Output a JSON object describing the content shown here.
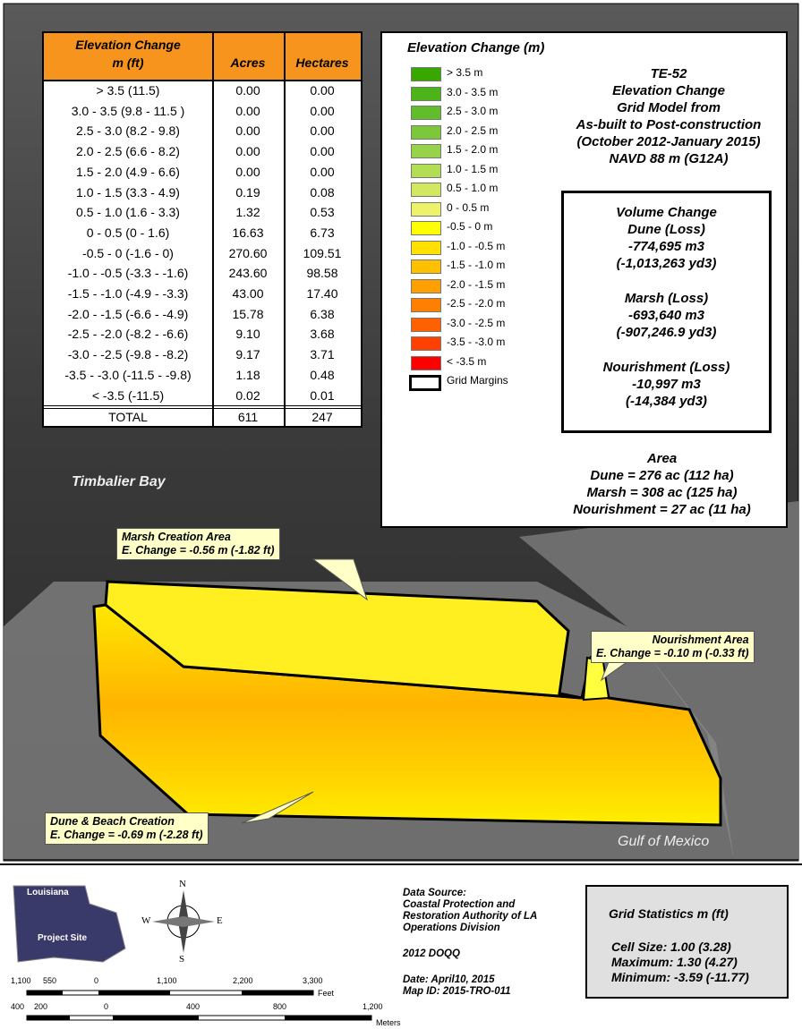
{
  "table": {
    "header": [
      "Elevation Change",
      "m (ft)",
      "Acres",
      "Hectares"
    ],
    "rows": [
      [
        "> 3.5 (11.5)",
        "0.00",
        "0.00"
      ],
      [
        "3.0 - 3.5 (9.8 - 11.5 )",
        "0.00",
        "0.00"
      ],
      [
        "2.5 - 3.0  (8.2 - 9.8)",
        "0.00",
        "0.00"
      ],
      [
        "2.0 - 2.5 (6.6 - 8.2)",
        "0.00",
        "0.00"
      ],
      [
        "1.5 - 2.0 (4.9 - 6.6)",
        "0.00",
        "0.00"
      ],
      [
        "1.0 - 1.5 (3.3 - 4.9)",
        "0.19",
        "0.08"
      ],
      [
        "0.5 - 1.0 (1.6 - 3.3)",
        "1.32",
        "0.53"
      ],
      [
        "0 - 0.5 (0 - 1.6)",
        "16.63",
        "6.73"
      ],
      [
        "-0.5 - 0 (-1.6 - 0)",
        "270.60",
        "109.51"
      ],
      [
        "-1.0 - -0.5 (-3.3 - -1.6)",
        "243.60",
        "98.58"
      ],
      [
        "-1.5 - -1.0 (-4.9 - -3.3)",
        "43.00",
        "17.40"
      ],
      [
        "-2.0 - -1.5 (-6.6 - -4.9)",
        "15.78",
        "6.38"
      ],
      [
        "-2.5 - -2.0 (-8.2 - -6.6)",
        "9.10",
        "3.68"
      ],
      [
        "-3.0 - -2.5 (-9.8 - -8.2)",
        "9.17",
        "3.71"
      ],
      [
        "-3.5 - -3.0 (-11.5 - -9.8)",
        "1.18",
        "0.48"
      ],
      [
        "< -3.5 (-11.5)",
        "0.02",
        "0.01"
      ]
    ],
    "total": [
      "TOTAL",
      "611",
      "247"
    ]
  },
  "legend": {
    "title": "Elevation Change (m)",
    "items": [
      {
        "label": "> 3.5 m",
        "color": "#38a800"
      },
      {
        "label": "3.0 - 3.5 m",
        "color": "#4cb31a"
      },
      {
        "label": "2.5 - 3.0 m",
        "color": "#61bd2a"
      },
      {
        "label": "2.0 - 2.5 m",
        "color": "#7cc83a"
      },
      {
        "label": "1.5 - 2.0 m",
        "color": "#98d24a"
      },
      {
        "label": "1.0 - 1.5 m",
        "color": "#b4dd56"
      },
      {
        "label": "0.5 - 1.0 m",
        "color": "#d1e860"
      },
      {
        "label": "0 - 0.5 m",
        "color": "#eef26a"
      },
      {
        "label": "-0.5 - 0 m",
        "color": "#ffff00"
      },
      {
        "label": "-1.0 - -0.5 m",
        "color": "#ffe000"
      },
      {
        "label": "-1.5 - -1.0 m",
        "color": "#ffc000"
      },
      {
        "label": "-2.0 - -1.5 m",
        "color": "#ffa000"
      },
      {
        "label": "-2.5 - -2.0 m",
        "color": "#ff8000"
      },
      {
        "label": "-3.0 - -2.5 m",
        "color": "#ff6000"
      },
      {
        "label": "-3.5 - -3.0 m",
        "color": "#ff4000"
      },
      {
        "label": "< -3.5 m",
        "color": "#ff0000"
      }
    ],
    "margins": "Grid Margins"
  },
  "info": [
    "TE-52",
    "Elevation Change",
    "Grid Model from",
    "As-built to Post-construction",
    "(October 2012-January 2015)",
    "NAVD 88 m (G12A)"
  ],
  "volume": [
    "Volume Change",
    "Dune (Loss)",
    "-774,695  m3",
    "(-1,013,263 yd3)",
    "Marsh (Loss)",
    "-693,640  m3",
    "(-907,246.9 yd3)",
    "Nourishment (Loss)",
    "-10,997  m3",
    "(-14,384 yd3)"
  ],
  "area": [
    "Area",
    "Dune = 276 ac (112 ha)",
    "Marsh = 308 ac (125 ha)",
    "Nourishment = 27 ac (11 ha)"
  ],
  "map_labels": {
    "bay": "Timbalier Bay",
    "gulf": "Gulf of Mexico"
  },
  "callouts": {
    "marsh": [
      "Marsh Creation Area",
      "E. Change =  -0.56 m (-1.82 ft)"
    ],
    "nourishment": [
      "Nourishment Area",
      "E. Change = -0.10 m (-0.33 ft)"
    ],
    "dune": [
      "Dune & Beach Creation",
      "E. Change =  -0.69 m (-2.28 ft)"
    ]
  },
  "inset": [
    "Louisiana",
    "Project Site"
  ],
  "compass": [
    "N",
    "S",
    "W",
    "E"
  ],
  "scale_feet": [
    "1,100",
    "550",
    "0",
    "1,100",
    "2,200",
    "3,300",
    "Feet"
  ],
  "scale_meters": [
    "400",
    "200",
    "0",
    "400",
    "800",
    "1,200",
    "Meters"
  ],
  "source": [
    "Data Source:",
    "Coastal Protection and",
    "Restoration Authority of LA",
    "Operations Division",
    "2012 DOQQ",
    "Date: April10, 2015",
    "Map ID: 2015-TRO-011"
  ],
  "grid_stats": [
    "Grid Statistics m (ft)",
    "Cell Size:  1.00 (3.28)",
    "Maximum: 1.30 (4.27)",
    "Minimum: -3.59 (-11.77)"
  ]
}
